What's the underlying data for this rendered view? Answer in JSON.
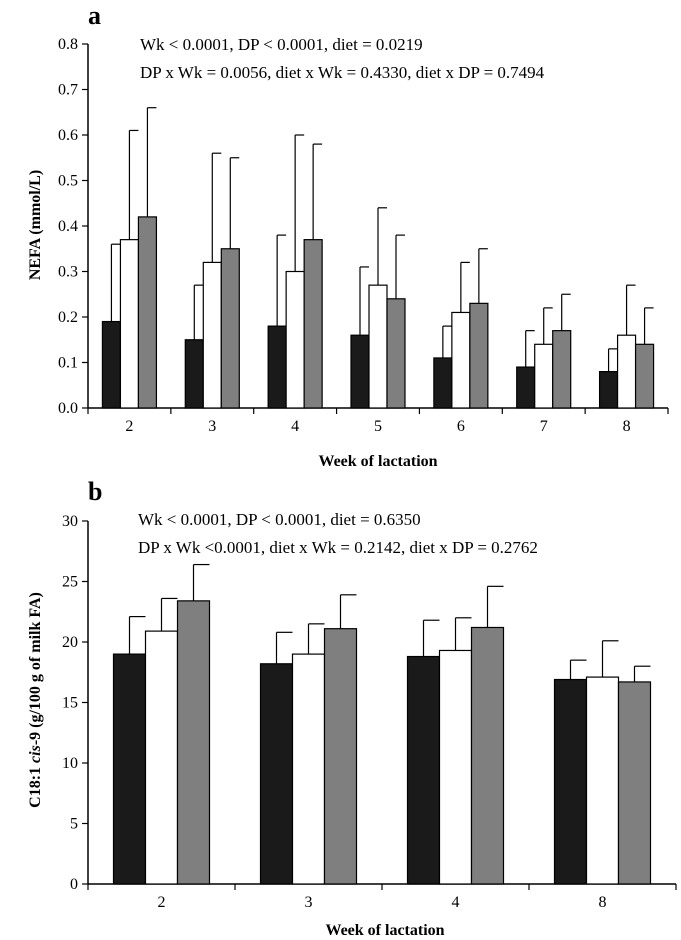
{
  "chart_data": [
    {
      "panel": "a",
      "type": "bar",
      "stats_lines": [
        "Wk < 0.0001, DP < 0.0001, diet = 0.0219",
        "DP x Wk = 0.0056, diet x Wk = 0.4330, diet x DP = 0.7494"
      ],
      "ylabel": "NEFA (mmol/L)",
      "xlabel": "Week of lactation",
      "ylim": [
        0,
        0.8
      ],
      "yticks": [
        0,
        0.1,
        0.2,
        0.3,
        0.4,
        0.5,
        0.6,
        0.7,
        0.8
      ],
      "categories": [
        "2",
        "3",
        "4",
        "5",
        "6",
        "7",
        "8"
      ],
      "series": [
        {
          "color": "#1a1a1a",
          "values": [
            0.19,
            0.15,
            0.18,
            0.16,
            0.11,
            0.09,
            0.08
          ],
          "error_upper": [
            0.36,
            0.27,
            0.38,
            0.31,
            0.18,
            0.17,
            0.13
          ]
        },
        {
          "color": "#ffffff",
          "values": [
            0.37,
            0.32,
            0.3,
            0.27,
            0.21,
            0.14,
            0.16
          ],
          "error_upper": [
            0.61,
            0.56,
            0.6,
            0.44,
            0.32,
            0.22,
            0.27
          ]
        },
        {
          "color": "#7f7f7f",
          "values": [
            0.42,
            0.35,
            0.37,
            0.24,
            0.23,
            0.17,
            0.14
          ],
          "error_upper": [
            0.66,
            0.55,
            0.58,
            0.38,
            0.35,
            0.25,
            0.22
          ]
        }
      ]
    },
    {
      "panel": "b",
      "type": "bar",
      "stats_lines": [
        "Wk < 0.0001, DP < 0.0001, diet = 0.6350",
        "DP x Wk <0.0001, diet x Wk = 0.2142, diet x DP = 0.2762"
      ],
      "ylabel_parts": [
        "C18:1 ",
        "cis",
        "-9 (g/100 g of milk FA)"
      ],
      "xlabel": "Week of lactation",
      "ylim": [
        0,
        30
      ],
      "yticks": [
        0,
        5,
        10,
        15,
        20,
        25,
        30
      ],
      "categories": [
        "2",
        "3",
        "4",
        "8"
      ],
      "series": [
        {
          "color": "#1a1a1a",
          "values": [
            19.0,
            18.2,
            18.8,
            16.9
          ],
          "error_upper": [
            22.1,
            20.8,
            21.8,
            18.5
          ]
        },
        {
          "color": "#ffffff",
          "values": [
            20.9,
            19.0,
            19.3,
            17.1
          ],
          "error_upper": [
            23.6,
            21.5,
            22.0,
            20.1
          ]
        },
        {
          "color": "#7f7f7f",
          "values": [
            23.4,
            21.1,
            21.2,
            16.7
          ],
          "error_upper": [
            26.4,
            23.9,
            24.6,
            18.0
          ]
        }
      ]
    }
  ]
}
